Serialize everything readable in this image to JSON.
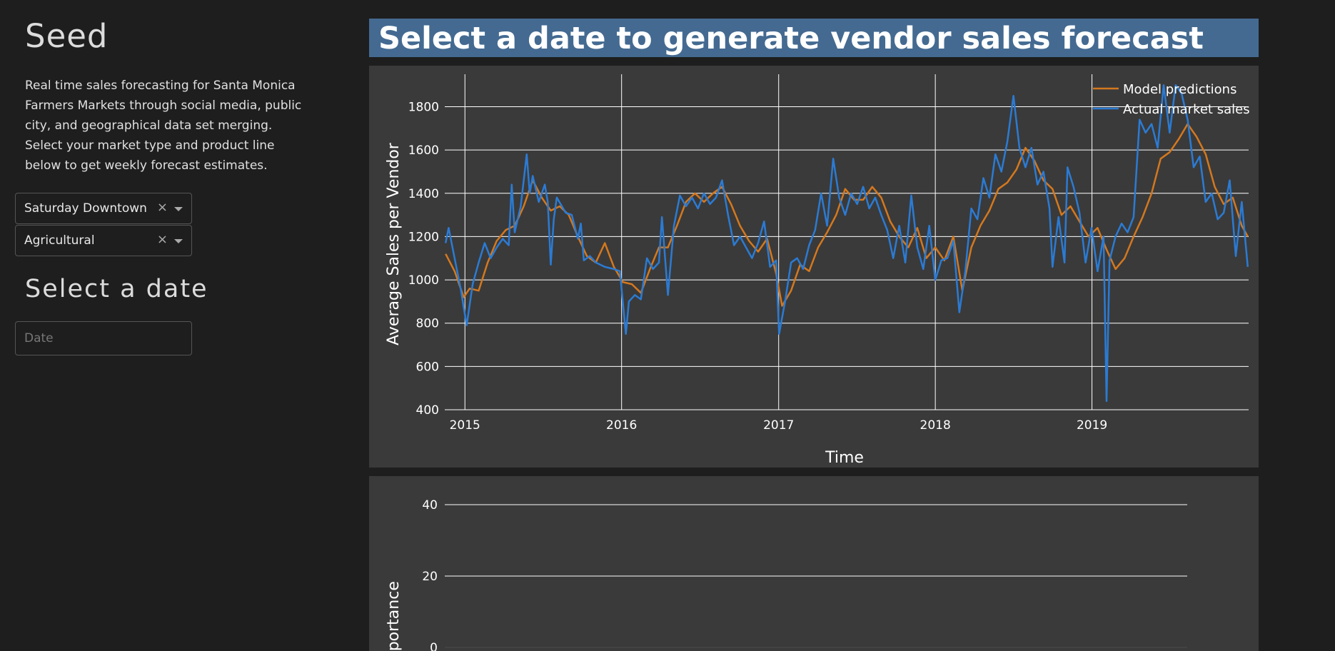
{
  "sidebar": {
    "title": "Seed",
    "description": "Real time sales forecasting for Santa Monica Farmers Markets through social media, public city, and geographical data set merging. Select your market type and product line below to get weekly forecast estimates.",
    "market_select": {
      "value": "Saturday Downtown",
      "clear_icon": "×"
    },
    "product_select": {
      "value": "Agricultural",
      "clear_icon": "×"
    },
    "date_heading": "Select a date",
    "date_input": {
      "placeholder": "Date",
      "value": ""
    }
  },
  "main": {
    "banner_title": "Select a date to generate vendor sales forecast",
    "banner_color": "#446a91"
  },
  "chart_data": [
    {
      "type": "line",
      "xlabel": "Time",
      "ylabel": "Average Sales per Vendor",
      "x_ticks": [
        "2015",
        "2016",
        "2017",
        "2018",
        "2019"
      ],
      "xlim": [
        "2014-11-15",
        "2020-01-01"
      ],
      "ylim": [
        400,
        1950
      ],
      "y_ticks": [
        400,
        600,
        800,
        1000,
        1200,
        1400,
        1600,
        1800
      ],
      "grid": true,
      "legend_position": "top-right",
      "background": "#3a3a3a",
      "series": [
        {
          "name": "Model predictions",
          "color": "#d4781e",
          "points": [
            [
              "2014-11-17",
              1120
            ],
            [
              "2014-12-08",
              1040
            ],
            [
              "2014-12-29",
              920
            ],
            [
              "2015-01-12",
              960
            ],
            [
              "2015-02-02",
              950
            ],
            [
              "2015-02-23",
              1080
            ],
            [
              "2015-03-16",
              1180
            ],
            [
              "2015-04-06",
              1230
            ],
            [
              "2015-04-27",
              1250
            ],
            [
              "2015-05-18",
              1340
            ],
            [
              "2015-06-08",
              1460
            ],
            [
              "2015-06-29",
              1380
            ],
            [
              "2015-07-20",
              1320
            ],
            [
              "2015-08-10",
              1340
            ],
            [
              "2015-08-31",
              1300
            ],
            [
              "2015-09-21",
              1200
            ],
            [
              "2015-10-12",
              1110
            ],
            [
              "2015-11-02",
              1080
            ],
            [
              "2015-11-23",
              1170
            ],
            [
              "2015-12-14",
              1060
            ],
            [
              "2016-01-04",
              990
            ],
            [
              "2016-01-25",
              980
            ],
            [
              "2016-02-15",
              940
            ],
            [
              "2016-03-07",
              1050
            ],
            [
              "2016-03-28",
              1150
            ],
            [
              "2016-04-18",
              1150
            ],
            [
              "2016-05-09",
              1250
            ],
            [
              "2016-05-30",
              1360
            ],
            [
              "2016-06-20",
              1400
            ],
            [
              "2016-07-11",
              1360
            ],
            [
              "2016-08-01",
              1400
            ],
            [
              "2016-08-22",
              1430
            ],
            [
              "2016-09-12",
              1350
            ],
            [
              "2016-10-03",
              1250
            ],
            [
              "2016-10-24",
              1180
            ],
            [
              "2016-11-14",
              1130
            ],
            [
              "2016-12-05",
              1190
            ],
            [
              "2016-12-26",
              1030
            ],
            [
              "2017-01-09",
              880
            ],
            [
              "2017-01-30",
              950
            ],
            [
              "2017-02-20",
              1070
            ],
            [
              "2017-03-13",
              1040
            ],
            [
              "2017-04-03",
              1150
            ],
            [
              "2017-04-24",
              1220
            ],
            [
              "2017-05-15",
              1300
            ],
            [
              "2017-06-05",
              1420
            ],
            [
              "2017-06-26",
              1370
            ],
            [
              "2017-07-17",
              1370
            ],
            [
              "2017-08-07",
              1430
            ],
            [
              "2017-08-28",
              1380
            ],
            [
              "2017-09-18",
              1270
            ],
            [
              "2017-10-09",
              1200
            ],
            [
              "2017-10-30",
              1150
            ],
            [
              "2017-11-20",
              1240
            ],
            [
              "2017-12-11",
              1100
            ],
            [
              "2018-01-01",
              1150
            ],
            [
              "2018-01-22",
              1090
            ],
            [
              "2018-02-12",
              1200
            ],
            [
              "2018-03-05",
              950
            ],
            [
              "2018-03-26",
              1150
            ],
            [
              "2018-04-16",
              1250
            ],
            [
              "2018-05-07",
              1320
            ],
            [
              "2018-05-28",
              1420
            ],
            [
              "2018-06-18",
              1450
            ],
            [
              "2018-07-09",
              1510
            ],
            [
              "2018-07-30",
              1610
            ],
            [
              "2018-08-20",
              1550
            ],
            [
              "2018-09-10",
              1460
            ],
            [
              "2018-10-01",
              1420
            ],
            [
              "2018-10-22",
              1300
            ],
            [
              "2018-11-12",
              1340
            ],
            [
              "2018-12-03",
              1270
            ],
            [
              "2018-12-24",
              1200
            ],
            [
              "2019-01-14",
              1240
            ],
            [
              "2019-02-04",
              1140
            ],
            [
              "2019-02-25",
              1050
            ],
            [
              "2019-03-18",
              1100
            ],
            [
              "2019-04-08",
              1200
            ],
            [
              "2019-04-29",
              1290
            ],
            [
              "2019-05-20",
              1400
            ],
            [
              "2019-06-10",
              1560
            ],
            [
              "2019-07-01",
              1590
            ],
            [
              "2019-07-22",
              1650
            ],
            [
              "2019-08-12",
              1720
            ],
            [
              "2019-09-02",
              1660
            ],
            [
              "2019-09-23",
              1580
            ],
            [
              "2019-10-14",
              1430
            ],
            [
              "2019-11-04",
              1350
            ],
            [
              "2019-11-25",
              1380
            ],
            [
              "2019-12-16",
              1250
            ],
            [
              "2019-12-30",
              1200
            ]
          ]
        },
        {
          "name": "Actual market sales",
          "color": "#2b7bd4",
          "points": [
            [
              "2014-11-17",
              1170
            ],
            [
              "2014-11-24",
              1240
            ],
            [
              "2014-12-08",
              1100
            ],
            [
              "2014-12-22",
              960
            ],
            [
              "2015-01-05",
              790
            ],
            [
              "2015-01-19",
              980
            ],
            [
              "2015-02-02",
              1080
            ],
            [
              "2015-02-16",
              1170
            ],
            [
              "2015-03-02",
              1100
            ],
            [
              "2015-03-16",
              1150
            ],
            [
              "2015-03-30",
              1190
            ],
            [
              "2015-04-13",
              1160
            ],
            [
              "2015-04-20",
              1440
            ],
            [
              "2015-04-27",
              1220
            ],
            [
              "2015-05-11",
              1340
            ],
            [
              "2015-05-25",
              1580
            ],
            [
              "2015-06-01",
              1400
            ],
            [
              "2015-06-08",
              1480
            ],
            [
              "2015-06-22",
              1360
            ],
            [
              "2015-07-06",
              1440
            ],
            [
              "2015-07-13",
              1360
            ],
            [
              "2015-07-20",
              1070
            ],
            [
              "2015-07-27",
              1280
            ],
            [
              "2015-08-03",
              1380
            ],
            [
              "2015-08-24",
              1310
            ],
            [
              "2015-09-07",
              1300
            ],
            [
              "2015-09-21",
              1190
            ],
            [
              "2015-09-28",
              1260
            ],
            [
              "2015-10-05",
              1090
            ],
            [
              "2015-10-19",
              1110
            ],
            [
              "2015-11-02",
              1080
            ],
            [
              "2015-11-23",
              1060
            ],
            [
              "2015-12-14",
              1050
            ],
            [
              "2015-12-28",
              1040
            ],
            [
              "2016-01-11",
              750
            ],
            [
              "2016-01-18",
              900
            ],
            [
              "2016-02-01",
              930
            ],
            [
              "2016-02-15",
              910
            ],
            [
              "2016-02-29",
              1100
            ],
            [
              "2016-03-14",
              1050
            ],
            [
              "2016-03-28",
              1080
            ],
            [
              "2016-04-04",
              1290
            ],
            [
              "2016-04-18",
              930
            ],
            [
              "2016-05-02",
              1250
            ],
            [
              "2016-05-16",
              1390
            ],
            [
              "2016-05-30",
              1340
            ],
            [
              "2016-06-13",
              1380
            ],
            [
              "2016-06-27",
              1330
            ],
            [
              "2016-07-11",
              1400
            ],
            [
              "2016-07-25",
              1350
            ],
            [
              "2016-08-08",
              1380
            ],
            [
              "2016-08-22",
              1460
            ],
            [
              "2016-09-05",
              1300
            ],
            [
              "2016-09-19",
              1160
            ],
            [
              "2016-10-03",
              1200
            ],
            [
              "2016-10-17",
              1150
            ],
            [
              "2016-10-31",
              1100
            ],
            [
              "2016-11-14",
              1170
            ],
            [
              "2016-11-28",
              1270
            ],
            [
              "2016-12-12",
              1060
            ],
            [
              "2016-12-26",
              1090
            ],
            [
              "2017-01-02",
              750
            ],
            [
              "2017-01-16",
              900
            ],
            [
              "2017-01-30",
              1080
            ],
            [
              "2017-02-13",
              1100
            ],
            [
              "2017-02-27",
              1050
            ],
            [
              "2017-03-13",
              1160
            ],
            [
              "2017-03-27",
              1230
            ],
            [
              "2017-04-10",
              1400
            ],
            [
              "2017-04-24",
              1250
            ],
            [
              "2017-05-08",
              1560
            ],
            [
              "2017-05-22",
              1380
            ],
            [
              "2017-06-05",
              1300
            ],
            [
              "2017-06-19",
              1400
            ],
            [
              "2017-07-03",
              1350
            ],
            [
              "2017-07-17",
              1430
            ],
            [
              "2017-07-31",
              1330
            ],
            [
              "2017-08-14",
              1380
            ],
            [
              "2017-08-28",
              1300
            ],
            [
              "2017-09-11",
              1230
            ],
            [
              "2017-09-25",
              1100
            ],
            [
              "2017-10-09",
              1250
            ],
            [
              "2017-10-23",
              1080
            ],
            [
              "2017-11-06",
              1390
            ],
            [
              "2017-11-20",
              1150
            ],
            [
              "2017-12-04",
              1050
            ],
            [
              "2017-12-18",
              1250
            ],
            [
              "2018-01-01",
              1000
            ],
            [
              "2018-01-15",
              1090
            ],
            [
              "2018-01-29",
              1100
            ],
            [
              "2018-02-12",
              1180
            ],
            [
              "2018-02-26",
              850
            ],
            [
              "2018-03-12",
              1040
            ],
            [
              "2018-03-26",
              1330
            ],
            [
              "2018-04-09",
              1280
            ],
            [
              "2018-04-23",
              1470
            ],
            [
              "2018-05-07",
              1380
            ],
            [
              "2018-05-21",
              1580
            ],
            [
              "2018-06-04",
              1500
            ],
            [
              "2018-06-18",
              1640
            ],
            [
              "2018-07-02",
              1850
            ],
            [
              "2018-07-16",
              1610
            ],
            [
              "2018-07-30",
              1520
            ],
            [
              "2018-08-13",
              1610
            ],
            [
              "2018-08-27",
              1440
            ],
            [
              "2018-09-10",
              1500
            ],
            [
              "2018-09-24",
              1330
            ],
            [
              "2018-10-01",
              1060
            ],
            [
              "2018-10-15",
              1290
            ],
            [
              "2018-10-29",
              1080
            ],
            [
              "2018-11-05",
              1520
            ],
            [
              "2018-11-19",
              1430
            ],
            [
              "2018-12-03",
              1310
            ],
            [
              "2018-12-17",
              1080
            ],
            [
              "2018-12-31",
              1240
            ],
            [
              "2019-01-14",
              1040
            ],
            [
              "2019-01-28",
              1200
            ],
            [
              "2019-02-04",
              440
            ],
            [
              "2019-02-11",
              1090
            ],
            [
              "2019-02-25",
              1200
            ],
            [
              "2019-03-11",
              1260
            ],
            [
              "2019-03-25",
              1220
            ],
            [
              "2019-04-08",
              1290
            ],
            [
              "2019-04-22",
              1740
            ],
            [
              "2019-05-06",
              1680
            ],
            [
              "2019-05-20",
              1720
            ],
            [
              "2019-06-03",
              1610
            ],
            [
              "2019-06-17",
              1900
            ],
            [
              "2019-07-01",
              1680
            ],
            [
              "2019-07-15",
              1900
            ],
            [
              "2019-07-29",
              1860
            ],
            [
              "2019-08-12",
              1740
            ],
            [
              "2019-08-26",
              1520
            ],
            [
              "2019-09-09",
              1570
            ],
            [
              "2019-09-23",
              1360
            ],
            [
              "2019-10-07",
              1400
            ],
            [
              "2019-10-21",
              1280
            ],
            [
              "2019-11-04",
              1310
            ],
            [
              "2019-11-18",
              1460
            ],
            [
              "2019-12-02",
              1110
            ],
            [
              "2019-12-16",
              1360
            ],
            [
              "2019-12-30",
              1060
            ]
          ]
        }
      ]
    },
    {
      "type": "bar",
      "ylabel": "importance",
      "y_ticks": [
        0,
        20,
        40
      ],
      "ylim": [
        -5,
        48
      ],
      "grid": true,
      "background": "#3a3a3a",
      "categories": [],
      "values": []
    }
  ]
}
